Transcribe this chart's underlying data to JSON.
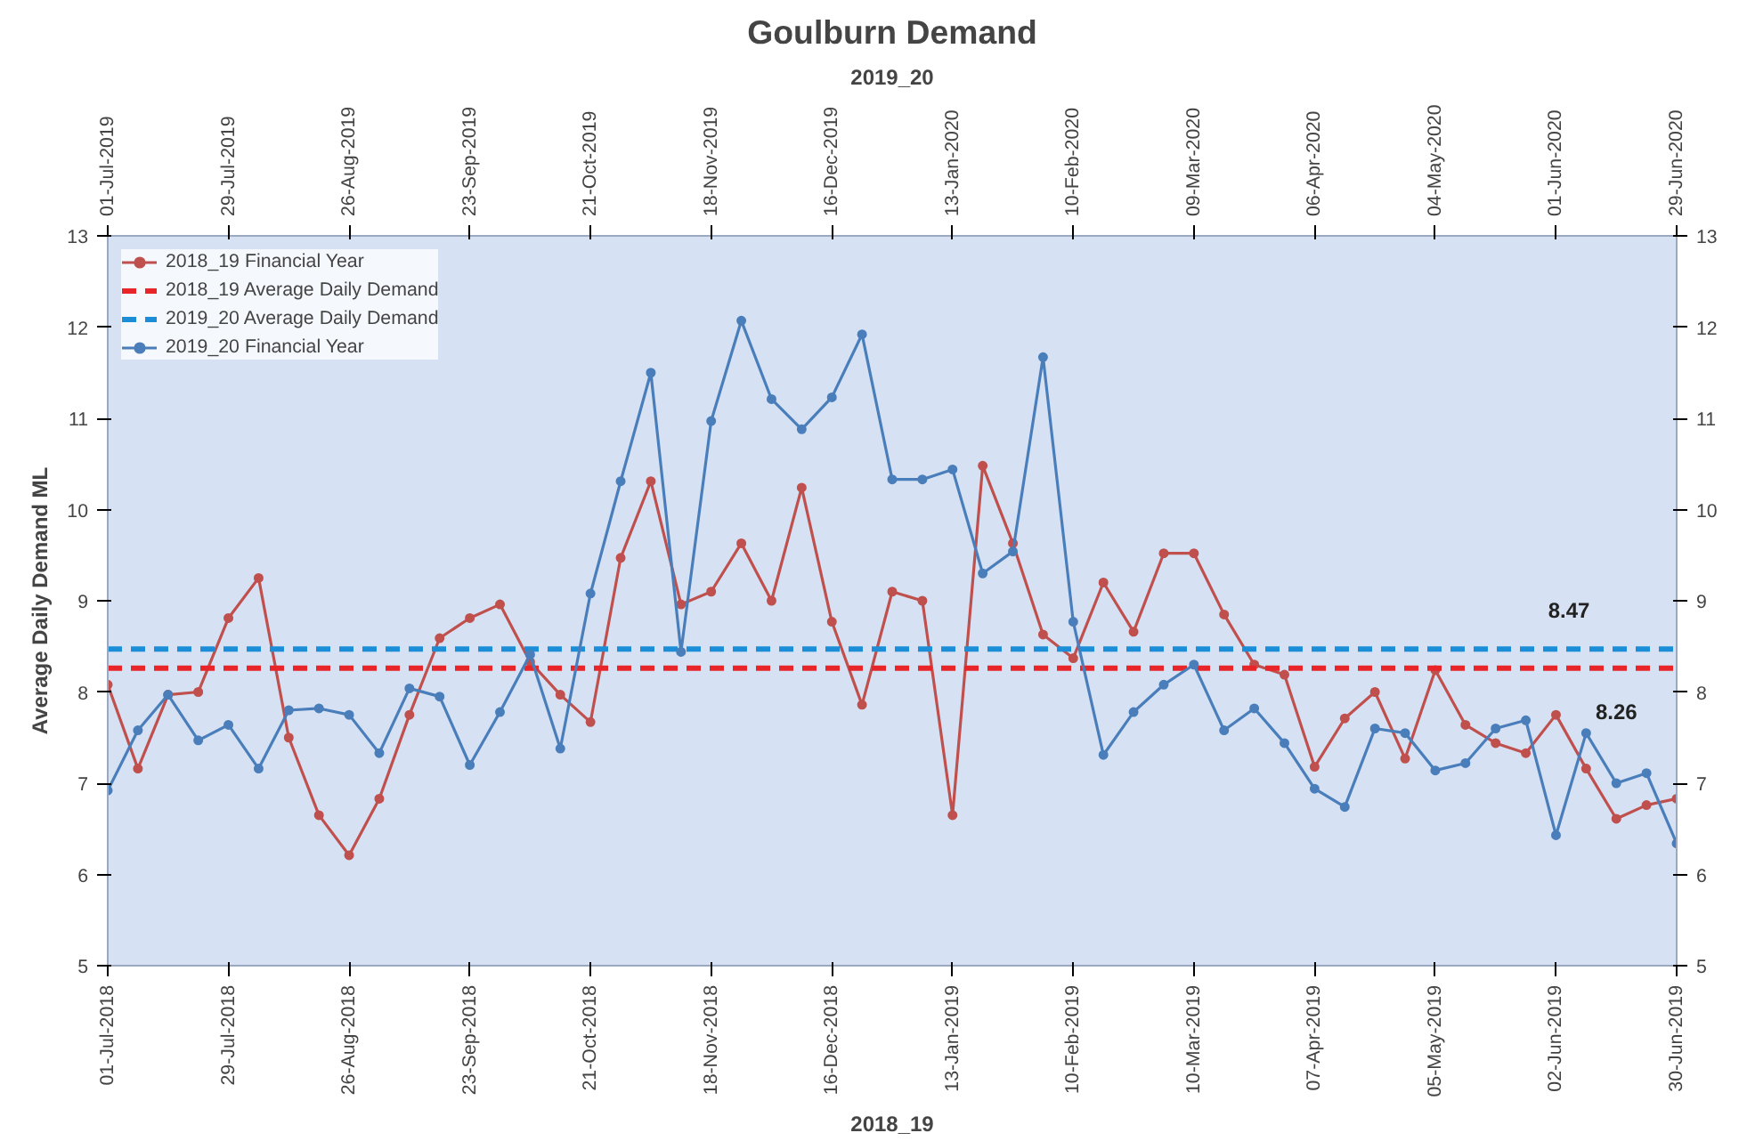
{
  "chart_data": {
    "type": "line",
    "title": "Goulburn Demand",
    "xlabel": "2018_19",
    "x2label": "2019_20",
    "ylabel": "Average Daily Demand ML",
    "xlim": [
      "2018-07-01",
      "2019-06-30"
    ],
    "xticks": [
      {
        "value": "2018-07-01",
        "label": "01-Jul-2018"
      },
      {
        "value": "2018-07-29",
        "label": "29-Jul-2018"
      },
      {
        "value": "2018-08-26",
        "label": "26-Aug-2018"
      },
      {
        "value": "2018-09-23",
        "label": "23-Sep-2018"
      },
      {
        "value": "2018-10-21",
        "label": "21-Oct-2018"
      },
      {
        "value": "2018-11-18",
        "label": "18-Nov-2018"
      },
      {
        "value": "2018-12-16",
        "label": "16-Dec-2018"
      },
      {
        "value": "2019-01-13",
        "label": "13-Jan-2019"
      },
      {
        "value": "2019-02-10",
        "label": "10-Feb-2019"
      },
      {
        "value": "2019-03-10",
        "label": "10-Mar-2019"
      },
      {
        "value": "2019-04-07",
        "label": "07-Apr-2019"
      },
      {
        "value": "2019-05-05",
        "label": "05-May-2019"
      },
      {
        "value": "2019-06-02",
        "label": "02-Jun-2019"
      },
      {
        "value": "2019-06-30",
        "label": "30-Jun-2019"
      }
    ],
    "x2lim": [
      "2019-07-01",
      "2020-06-29"
    ],
    "x2ticks": [
      {
        "value": "2019-07-01",
        "label": "01-Jul-2019"
      },
      {
        "value": "2019-07-29",
        "label": "29-Jul-2019"
      },
      {
        "value": "2019-08-26",
        "label": "26-Aug-2019"
      },
      {
        "value": "2019-09-23",
        "label": "23-Sep-2019"
      },
      {
        "value": "2019-10-21",
        "label": "21-Oct-2019"
      },
      {
        "value": "2019-11-18",
        "label": "18-Nov-2019"
      },
      {
        "value": "2019-12-16",
        "label": "16-Dec-2019"
      },
      {
        "value": "2020-01-13",
        "label": "13-Jan-2020"
      },
      {
        "value": "2020-02-10",
        "label": "10-Feb-2020"
      },
      {
        "value": "2020-03-09",
        "label": "09-Mar-2020"
      },
      {
        "value": "2020-04-06",
        "label": "06-Apr-2020"
      },
      {
        "value": "2020-05-04",
        "label": "04-May-2020"
      },
      {
        "value": "2020-06-01",
        "label": "01-Jun-2020"
      },
      {
        "value": "2020-06-29",
        "label": "29-Jun-2020"
      }
    ],
    "ylim": [
      5,
      13
    ],
    "yticks": [
      5,
      6,
      7,
      8,
      9,
      10,
      11,
      12,
      13
    ],
    "y2lim": [
      5,
      13
    ],
    "y2ticks": [
      5,
      6,
      7,
      8,
      9,
      10,
      11,
      12,
      13
    ],
    "legend": "top left",
    "series": [
      {
        "name": "2018_19 Financial Year",
        "color": "#c0504d",
        "marker": "circle",
        "line_style": "solid",
        "x": [
          "2018-07-01",
          "2018-07-08",
          "2018-07-15",
          "2018-07-22",
          "2018-07-29",
          "2018-08-05",
          "2018-08-12",
          "2018-08-19",
          "2018-08-26",
          "2018-09-02",
          "2018-09-09",
          "2018-09-16",
          "2018-09-23",
          "2018-09-30",
          "2018-10-07",
          "2018-10-14",
          "2018-10-21",
          "2018-10-28",
          "2018-11-04",
          "2018-11-11",
          "2018-11-18",
          "2018-11-25",
          "2018-12-02",
          "2018-12-09",
          "2018-12-16",
          "2018-12-23",
          "2018-12-30",
          "2019-01-06",
          "2019-01-13",
          "2019-01-20",
          "2019-01-27",
          "2019-02-03",
          "2019-02-10",
          "2019-02-17",
          "2019-02-24",
          "2019-03-03",
          "2019-03-10",
          "2019-03-17",
          "2019-03-24",
          "2019-03-31",
          "2019-04-07",
          "2019-04-14",
          "2019-04-21",
          "2019-04-28",
          "2019-05-05",
          "2019-05-12",
          "2019-05-19",
          "2019-05-26",
          "2019-06-02",
          "2019-06-09",
          "2019-06-16",
          "2019-06-23",
          "2019-06-30"
        ],
        "values": [
          8.08,
          7.16,
          7.97,
          8.0,
          8.81,
          9.25,
          7.5,
          6.65,
          6.21,
          6.83,
          7.75,
          8.59,
          8.81,
          8.96,
          8.33,
          7.97,
          7.67,
          9.47,
          10.31,
          8.96,
          9.1,
          9.63,
          9.0,
          10.24,
          8.77,
          7.86,
          9.1,
          9.0,
          6.65,
          10.48,
          9.63,
          8.63,
          8.37,
          9.2,
          8.66,
          9.52,
          9.52,
          8.85,
          8.3,
          8.19,
          7.18,
          7.71,
          8.0,
          7.27,
          8.24,
          7.64,
          7.44,
          7.33,
          7.75,
          7.16,
          6.61,
          6.76,
          6.83
        ]
      },
      {
        "name": "2018_19 Average Daily Demand",
        "color": "#e8262a",
        "marker": "none",
        "line_style": "dashed",
        "x": [
          "2018-07-01",
          "2019-06-30"
        ],
        "values": [
          8.26,
          8.26
        ]
      },
      {
        "name": "2019_20 Average Daily Demand",
        "color": "#1c8ed8",
        "marker": "none",
        "line_style": "dashed",
        "x": [
          "2018-07-01",
          "2019-06-30"
        ],
        "values": [
          8.47,
          8.47
        ]
      },
      {
        "name": "2019_20 Financial Year",
        "color": "#4a7ebb",
        "marker": "circle",
        "line_style": "solid",
        "axis": "x2",
        "x": [
          "2019-07-01",
          "2019-07-08",
          "2019-07-15",
          "2019-07-22",
          "2019-07-29",
          "2019-08-05",
          "2019-08-12",
          "2019-08-19",
          "2019-08-26",
          "2019-09-02",
          "2019-09-09",
          "2019-09-16",
          "2019-09-23",
          "2019-09-30",
          "2019-10-07",
          "2019-10-14",
          "2019-10-21",
          "2019-10-28",
          "2019-11-04",
          "2019-11-11",
          "2019-11-18",
          "2019-11-25",
          "2019-12-02",
          "2019-12-09",
          "2019-12-16",
          "2019-12-23",
          "2019-12-30",
          "2020-01-06",
          "2020-01-13",
          "2020-01-20",
          "2020-01-27",
          "2020-02-03",
          "2020-02-10",
          "2020-02-17",
          "2020-02-24",
          "2020-03-02",
          "2020-03-09",
          "2020-03-16",
          "2020-03-23",
          "2020-03-30",
          "2020-04-06",
          "2020-04-13",
          "2020-04-20",
          "2020-04-27",
          "2020-05-04",
          "2020-05-11",
          "2020-05-18",
          "2020-05-25",
          "2020-06-01",
          "2020-06-08",
          "2020-06-15",
          "2020-06-22",
          "2020-06-29"
        ],
        "values": [
          6.92,
          7.58,
          7.97,
          7.47,
          7.64,
          7.16,
          7.8,
          7.82,
          7.75,
          7.33,
          8.04,
          7.95,
          7.2,
          7.78,
          8.41,
          7.38,
          9.08,
          10.31,
          11.5,
          8.44,
          10.97,
          12.07,
          11.21,
          10.88,
          11.23,
          11.92,
          10.33,
          10.33,
          10.44,
          9.3,
          9.54,
          11.67,
          8.77,
          7.31,
          7.78,
          8.08,
          8.3,
          7.58,
          7.82,
          7.44,
          6.94,
          6.74,
          7.6,
          7.55,
          7.14,
          7.22,
          7.6,
          7.69,
          6.43,
          7.55,
          7.0,
          7.11,
          6.34
        ]
      }
    ],
    "annotations": [
      {
        "text": "8.47",
        "x": "2019-06-05",
        "y": 8.47
      },
      {
        "text": "8.26",
        "x": "2019-06-16",
        "y": 8.26
      }
    ]
  }
}
